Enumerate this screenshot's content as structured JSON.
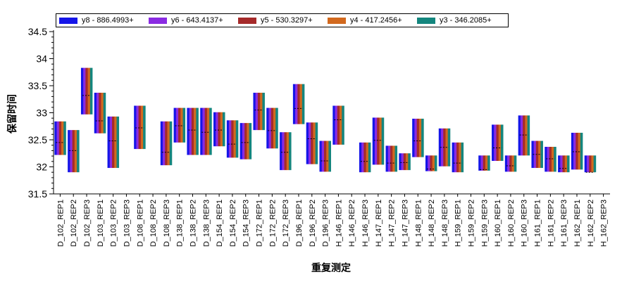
{
  "chart_data": {
    "type": "bar",
    "title": "",
    "xlabel": "重复测定",
    "ylabel": "保留时间",
    "ylim": [
      31.5,
      34.5
    ],
    "yticks": [
      "31.5",
      "32",
      "32.5",
      "33",
      "33.5",
      "34",
      "34.5"
    ],
    "legend_position": "top",
    "categories": [
      "D_102_REP1",
      "D_102_REP2",
      "D_102_REP3",
      "D_103_REP1",
      "D_103_REP2",
      "D_103_REP3",
      "D_108_REP1",
      "D_108_REP2",
      "D_108_REP3",
      "D_138_REP1",
      "D_138_REP2",
      "D_138_REP3",
      "D_154_REP1",
      "D_154_REP2",
      "D_154_REP3",
      "D_172_REP1",
      "D_172_REP2",
      "D_172_REP3",
      "D_196_REP1",
      "D_196_REP2",
      "D_196_REP3",
      "H_146_REP1",
      "H_146_REP2",
      "H_146_REP3",
      "H_147_REP1",
      "H_147_REP2",
      "H_147_REP3",
      "H_148_REP1",
      "H_148_REP2",
      "H_148_REP3",
      "H_159_REP1",
      "H_159_REP2",
      "H_159_REP3",
      "H_160_REP1",
      "H_160_REP2",
      "H_160_REP3",
      "H_161_REP1",
      "H_161_REP2",
      "H_161_REP3",
      "H_162_REP1",
      "H_162_REP2",
      "H_162_REP3"
    ],
    "series": [
      {
        "name": "y8 - 886.4993+",
        "color": "#1515e8"
      },
      {
        "name": "y6 - 643.4137+",
        "color": "#8a2be2"
      },
      {
        "name": "y5 - 530.3297+",
        "color": "#a52a2a"
      },
      {
        "name": "y4 - 417.2456+",
        "color": "#d2691e"
      },
      {
        "name": "y3 - 346.2085+",
        "color": "#14867e"
      }
    ],
    "ranges": [
      [
        32.22,
        32.84,
        32.45
      ],
      [
        31.9,
        32.68,
        32.3
      ],
      [
        32.97,
        33.83,
        33.32
      ],
      [
        32.62,
        33.37,
        32.85
      ],
      [
        31.98,
        32.93,
        32.48
      ],
      null,
      [
        32.33,
        33.13,
        32.72
      ],
      null,
      [
        32.03,
        32.84,
        32.27
      ],
      [
        32.45,
        33.09,
        32.76
      ],
      [
        32.22,
        33.09,
        32.68
      ],
      [
        32.22,
        33.09,
        32.64
      ],
      [
        32.38,
        33.01,
        32.68
      ],
      [
        32.17,
        32.86,
        32.42
      ],
      [
        32.14,
        32.81,
        32.45
      ],
      [
        32.68,
        33.37,
        33.05
      ],
      [
        32.34,
        33.09,
        32.67
      ],
      [
        31.94,
        32.64,
        32.27
      ],
      [
        32.79,
        33.53,
        33.08
      ],
      [
        32.05,
        32.82,
        32.52
      ],
      [
        31.91,
        32.48,
        32.11
      ],
      [
        32.41,
        33.13,
        32.87
      ],
      null,
      [
        31.9,
        32.45,
        32.1
      ],
      [
        32.04,
        32.91,
        32.49
      ],
      [
        31.91,
        32.39,
        32.07
      ],
      [
        31.94,
        32.25,
        32.08
      ],
      [
        32.18,
        32.89,
        32.48
      ],
      [
        31.92,
        32.21,
        31.96
      ],
      [
        32.01,
        32.71,
        32.36
      ],
      [
        31.9,
        32.45,
        32.07
      ],
      null,
      [
        31.93,
        32.21,
        31.95
      ],
      [
        32.11,
        32.78,
        32.35
      ],
      [
        31.91,
        32.21,
        32.02
      ],
      [
        32.21,
        32.95,
        32.59
      ],
      [
        31.98,
        32.48,
        32.23
      ],
      [
        31.91,
        32.37,
        32.15
      ],
      [
        31.9,
        32.21,
        31.97
      ],
      [
        31.95,
        32.63,
        32.28
      ],
      [
        31.9,
        32.21,
        31.9
      ],
      null
    ]
  }
}
